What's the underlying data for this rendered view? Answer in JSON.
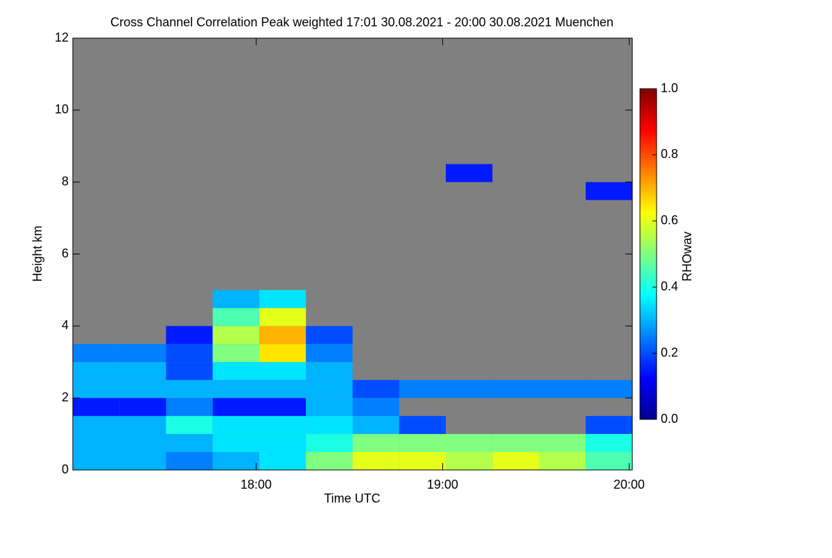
{
  "chart_data": {
    "type": "heatmap",
    "title": "Cross Channel Correlation Peak weighted   17:01 30.08.2021 - 20:00 30.08.2021 Muenchen",
    "x_label": "Time UTC",
    "y_label": "Height km",
    "colorbar_label": "RHOwav",
    "xlim": [
      17.017,
      20.017
    ],
    "xticks": [
      {
        "value": 18,
        "label": "18:00"
      },
      {
        "value": 19,
        "label": "19:00"
      },
      {
        "value": 20,
        "label": "20:00"
      }
    ],
    "ylim": [
      0,
      12
    ],
    "yticks": [
      0,
      2,
      4,
      6,
      8,
      10,
      12
    ],
    "clim": [
      0,
      1
    ],
    "cticks": [
      {
        "value": 0,
        "label": "0.0"
      },
      0.2,
      0.4,
      0.6,
      0.8,
      {
        "value": 1,
        "label": "1.0"
      }
    ],
    "colormap": "jet",
    "x_bins": [
      17.017,
      17.267,
      17.517,
      17.767,
      18.017,
      18.267,
      18.517,
      18.767,
      19.017,
      19.267,
      19.517,
      19.767,
      20.017
    ],
    "y_bins": [
      0,
      0.5,
      1,
      1.5,
      2,
      2.5,
      3,
      3.5,
      4,
      4.5,
      5,
      5.5,
      6,
      6.5,
      7,
      7.5,
      8,
      8.5,
      9,
      9.5,
      10,
      10.5,
      11,
      11.5,
      12
    ],
    "z": [
      [
        0.3,
        0.3,
        0.25,
        0.3,
        0.35,
        0.5,
        0.6,
        0.6,
        0.55,
        0.6,
        0.55,
        0.45
      ],
      [
        0.3,
        0.3,
        0.3,
        0.35,
        0.35,
        0.4,
        0.5,
        0.5,
        0.5,
        0.5,
        0.5,
        0.4
      ],
      [
        0.3,
        0.3,
        0.4,
        0.35,
        0.35,
        0.35,
        0.3,
        0.2,
        null,
        null,
        null,
        0.2
      ],
      [
        0.15,
        0.15,
        0.25,
        0.15,
        0.15,
        0.3,
        0.25,
        null,
        null,
        null,
        null,
        null
      ],
      [
        0.3,
        0.3,
        0.3,
        0.3,
        0.3,
        0.3,
        0.2,
        0.25,
        0.25,
        0.25,
        0.25,
        0.25
      ],
      [
        0.3,
        0.3,
        0.2,
        0.35,
        0.35,
        0.3,
        null,
        null,
        null,
        null,
        null,
        null
      ],
      [
        0.25,
        0.25,
        0.2,
        0.5,
        0.65,
        0.25,
        null,
        null,
        null,
        null,
        null,
        null
      ],
      [
        null,
        null,
        0.15,
        0.55,
        0.7,
        0.2,
        null,
        null,
        null,
        null,
        null,
        null
      ],
      [
        null,
        null,
        null,
        0.45,
        0.6,
        null,
        null,
        null,
        null,
        null,
        null,
        null
      ],
      [
        null,
        null,
        null,
        0.3,
        0.35,
        null,
        null,
        null,
        null,
        null,
        null,
        null
      ],
      [
        null,
        null,
        null,
        null,
        null,
        null,
        null,
        null,
        null,
        null,
        null,
        null
      ],
      [
        null,
        null,
        null,
        null,
        null,
        null,
        null,
        null,
        null,
        null,
        null,
        null
      ],
      [
        null,
        null,
        null,
        null,
        null,
        null,
        null,
        null,
        null,
        null,
        null,
        null
      ],
      [
        null,
        null,
        null,
        null,
        null,
        null,
        null,
        null,
        null,
        null,
        null,
        null
      ],
      [
        null,
        null,
        null,
        null,
        null,
        null,
        null,
        null,
        null,
        null,
        null,
        null
      ],
      [
        null,
        null,
        null,
        null,
        null,
        null,
        null,
        null,
        null,
        null,
        null,
        0.15
      ],
      [
        null,
        null,
        null,
        null,
        null,
        null,
        null,
        null,
        0.15,
        null,
        null,
        null
      ],
      [
        null,
        null,
        null,
        null,
        null,
        null,
        null,
        null,
        null,
        null,
        null,
        null
      ],
      [
        null,
        null,
        null,
        null,
        null,
        null,
        null,
        null,
        null,
        null,
        null,
        null
      ],
      [
        null,
        null,
        null,
        null,
        null,
        null,
        null,
        null,
        null,
        null,
        null,
        null
      ],
      [
        null,
        null,
        null,
        null,
        null,
        null,
        null,
        null,
        null,
        null,
        null,
        null
      ],
      [
        null,
        null,
        null,
        null,
        null,
        null,
        null,
        null,
        null,
        null,
        null,
        null
      ],
      [
        null,
        null,
        null,
        null,
        null,
        null,
        null,
        null,
        null,
        null,
        null,
        null
      ],
      [
        null,
        null,
        null,
        null,
        null,
        null,
        null,
        null,
        null,
        null,
        null,
        null
      ]
    ]
  }
}
